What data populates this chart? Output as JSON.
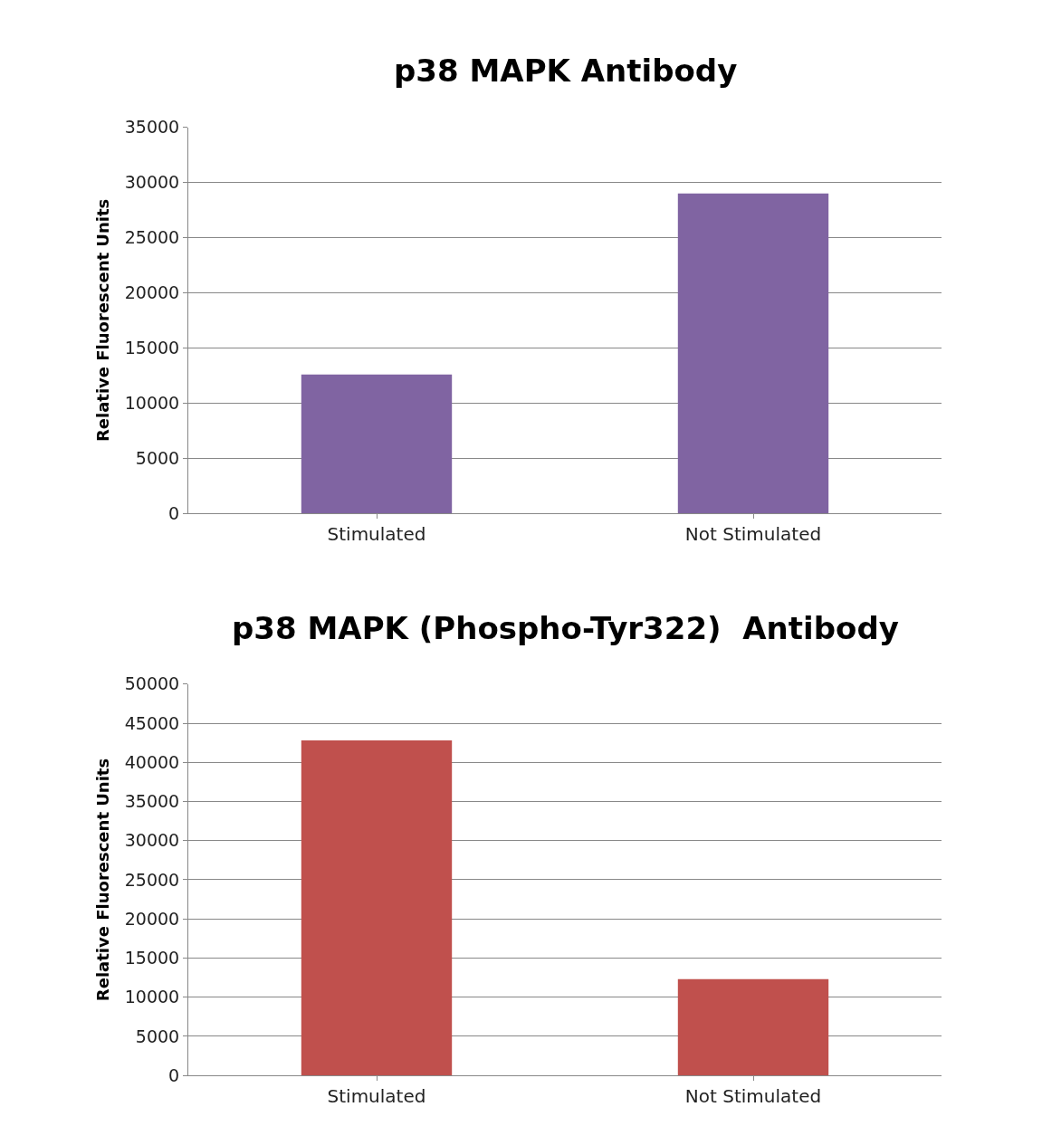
{
  "chart_data": [
    {
      "type": "bar",
      "title": "p38 MAPK Antibody",
      "ylabel": "Relative Fluorescent Units",
      "categories": [
        "Stimulated",
        "Not Stimulated"
      ],
      "series": [
        {
          "color": "#8064a2",
          "values": [
            12600,
            29000
          ]
        }
      ],
      "ylim": [
        0,
        35000
      ],
      "yticks": [
        0,
        5000,
        10000,
        15000,
        20000,
        25000,
        30000,
        35000
      ],
      "grid": "y"
    },
    {
      "type": "bar",
      "title": "p38 MAPK (Phospho-Tyr322)  Antibody",
      "ylabel": "Relative Fluorescent Units",
      "categories": [
        "Stimulated",
        "Not Stimulated"
      ],
      "series": [
        {
          "color": "#c0504d",
          "values": [
            42800,
            12300
          ]
        }
      ],
      "ylim": [
        0,
        50000
      ],
      "yticks": [
        0,
        5000,
        10000,
        15000,
        20000,
        25000,
        30000,
        35000,
        40000,
        45000,
        50000
      ],
      "grid": "y"
    }
  ]
}
